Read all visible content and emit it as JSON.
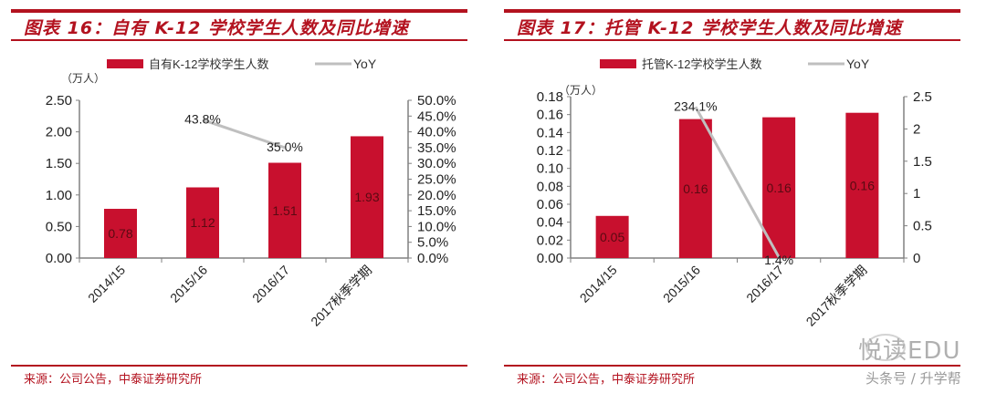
{
  "panels": [
    {
      "title": "图表 16：自有 K-12 学校学生人数及同比增速",
      "unit_label": "（万人）",
      "legend": {
        "bar": "自有K-12学校学生人数",
        "line": "YoY"
      },
      "source": "来源：公司公告，中泰证券研究所"
    },
    {
      "title": "图表 17：托管 K-12 学校学生人数及同比增速",
      "unit_label": "（万人）",
      "legend": {
        "bar": "托管K-12学校学生人数",
        "line": "YoY"
      },
      "source": "来源：公司公告，中泰证券研究所"
    }
  ],
  "watermark": {
    "brand": "悦读EDU",
    "sub": "头条号 / 升学帮"
  },
  "colors": {
    "bar": "#c8102e",
    "line": "#bfbfbf",
    "accent": "#b3121f",
    "axis": "#808080"
  },
  "chart_data": [
    {
      "type": "bar+line",
      "title": "图表 16：自有 K-12 学校学生人数及同比增速",
      "categories": [
        "2014/15",
        "2015/16",
        "2016/17",
        "2017秋季学期"
      ],
      "series": [
        {
          "name": "自有K-12学校学生人数",
          "type": "bar",
          "axis": "left",
          "values": [
            0.78,
            1.12,
            1.51,
            1.93
          ],
          "labels": [
            "0.78",
            "1.12",
            "1.51",
            "1.93"
          ]
        },
        {
          "name": "YoY",
          "type": "line",
          "axis": "right",
          "values": [
            null,
            43.8,
            35.0,
            null
          ],
          "labels": [
            "",
            "43.8%",
            "35.0%",
            ""
          ]
        }
      ],
      "ylabel": "（万人）",
      "ylim": [
        0,
        2.5
      ],
      "yticks": [
        "0.00",
        "0.50",
        "1.00",
        "1.50",
        "2.00",
        "2.50"
      ],
      "y2lim": [
        0,
        50
      ],
      "y2ticks": [
        "0.0%",
        "5.0%",
        "10.0%",
        "15.0%",
        "20.0%",
        "25.0%",
        "30.0%",
        "35.0%",
        "40.0%",
        "45.0%",
        "50.0%"
      ],
      "legend_position": "top",
      "grid": false
    },
    {
      "type": "bar+line",
      "title": "图表 17：托管 K-12 学校学生人数及同比增速",
      "categories": [
        "2014/15",
        "2015/16",
        "2016/17",
        "2017秋季学期"
      ],
      "series": [
        {
          "name": "托管K-12学校学生人数",
          "type": "bar",
          "axis": "left",
          "values": [
            0.047,
            0.155,
            0.157,
            0.162
          ],
          "labels": [
            "0.05",
            "0.16",
            "0.16",
            "0.16"
          ]
        },
        {
          "name": "YoY",
          "type": "line",
          "axis": "right",
          "values": [
            null,
            2.341,
            0.014,
            null
          ],
          "labels": [
            "",
            "234.1%",
            "1.4%",
            ""
          ]
        }
      ],
      "ylabel": "（万人）",
      "ylim": [
        0,
        0.18
      ],
      "yticks": [
        "0.00",
        "0.02",
        "0.04",
        "0.06",
        "0.08",
        "0.10",
        "0.12",
        "0.14",
        "0.16",
        "0.18"
      ],
      "y2lim": [
        0,
        2.5
      ],
      "y2ticks": [
        "0",
        "0.5",
        "1",
        "1.5",
        "2",
        "2.5"
      ],
      "legend_position": "top",
      "grid": false
    }
  ]
}
